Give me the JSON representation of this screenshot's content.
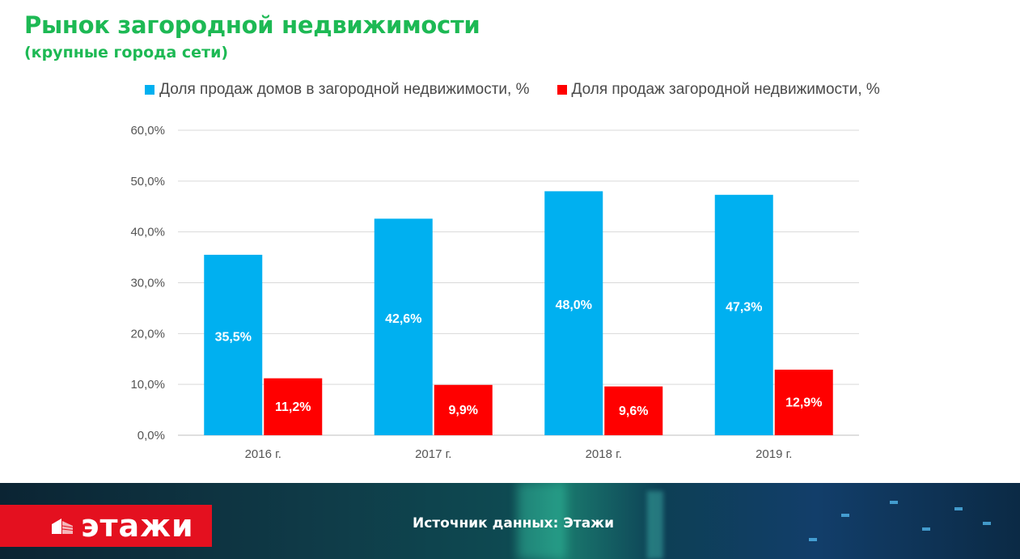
{
  "header": {
    "title": "Рынок загородной недвижимости",
    "subtitle": "(крупные города сети)"
  },
  "colors": {
    "title": "#1db954",
    "series_blue": "#00b0f0",
    "series_red": "#ff0000",
    "logo_red": "#e4101f"
  },
  "chart_data": {
    "type": "bar",
    "categories": [
      "2016 г.",
      "2017 г.",
      "2018 г.",
      "2019 г."
    ],
    "series": [
      {
        "name": "Доля продаж домов в загородной недвижимости, %",
        "color": "#00b0f0",
        "values": [
          35.5,
          42.6,
          48.0,
          47.3
        ],
        "labels": [
          "35,5%",
          "42,6%",
          "48,0%",
          "47,3%"
        ]
      },
      {
        "name": "Доля продаж загородной недвижимости, %",
        "color": "#ff0000",
        "values": [
          11.2,
          9.9,
          9.6,
          12.9
        ],
        "labels": [
          "11,2%",
          "9,9%",
          "9,6%",
          "12,9%"
        ]
      }
    ],
    "yticks": [
      "0,0%",
      "10,0%",
      "20,0%",
      "30,0%",
      "40,0%",
      "50,0%",
      "60,0%"
    ],
    "ylim": [
      0,
      60
    ],
    "grid": true,
    "legend_position": "top"
  },
  "footer": {
    "logo_text": "этажи",
    "source": "Источник данных: Этажи"
  }
}
